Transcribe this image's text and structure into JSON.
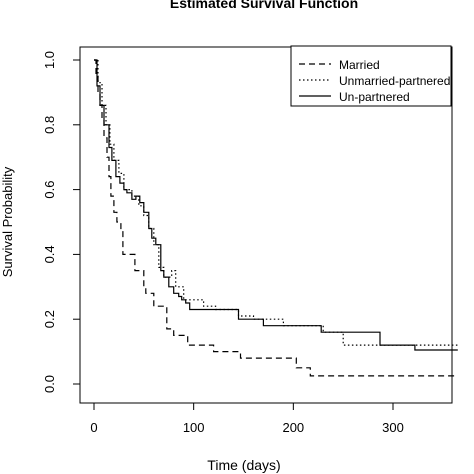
{
  "chart_data": {
    "type": "line",
    "title": "Estimated Survival Function",
    "xlabel": "Time (days)",
    "ylabel": "Survival Probability",
    "xlim": [
      -10,
      370
    ],
    "ylim": [
      0.0,
      1.0
    ],
    "x_ticks": [
      "0",
      "100",
      "200",
      "300"
    ],
    "y_ticks": [
      "0.0",
      "0.2",
      "0.4",
      "0.6",
      "0.8",
      "1.0"
    ],
    "grid": false,
    "legend_position": "top-right",
    "series": [
      {
        "name": "Married",
        "line_style": "dashed",
        "color": "#000000",
        "points": [
          [
            0,
            1.0
          ],
          [
            2,
            0.95
          ],
          [
            4,
            0.9
          ],
          [
            6,
            0.86
          ],
          [
            8,
            0.82
          ],
          [
            10,
            0.76
          ],
          [
            13,
            0.7
          ],
          [
            15,
            0.64
          ],
          [
            17,
            0.58
          ],
          [
            20,
            0.53
          ],
          [
            23,
            0.5
          ],
          [
            27,
            0.48
          ],
          [
            29,
            0.4
          ],
          [
            39,
            0.4
          ],
          [
            41,
            0.35
          ],
          [
            48,
            0.35
          ],
          [
            50,
            0.3
          ],
          [
            52,
            0.28
          ],
          [
            58,
            0.28
          ],
          [
            60,
            0.24
          ],
          [
            70,
            0.24
          ],
          [
            73,
            0.17
          ],
          [
            78,
            0.17
          ],
          [
            80,
            0.15
          ],
          [
            92,
            0.15
          ],
          [
            94,
            0.12
          ],
          [
            118,
            0.12
          ],
          [
            120,
            0.1
          ],
          [
            145,
            0.1
          ],
          [
            147,
            0.08
          ],
          [
            201,
            0.08
          ],
          [
            203,
            0.05
          ],
          [
            215,
            0.05
          ],
          [
            217,
            0.025
          ],
          [
            365,
            0.025
          ]
        ]
      },
      {
        "name": "Unmarried-partnered",
        "line_style": "dotted",
        "color": "#000000",
        "points": [
          [
            0,
            1.0
          ],
          [
            4,
            0.93
          ],
          [
            8,
            0.86
          ],
          [
            12,
            0.8
          ],
          [
            16,
            0.74
          ],
          [
            20,
            0.69
          ],
          [
            25,
            0.65
          ],
          [
            30,
            0.6
          ],
          [
            38,
            0.58
          ],
          [
            45,
            0.55
          ],
          [
            50,
            0.52
          ],
          [
            55,
            0.48
          ],
          [
            60,
            0.43
          ],
          [
            65,
            0.36
          ],
          [
            70,
            0.33
          ],
          [
            78,
            0.35
          ],
          [
            82,
            0.3
          ],
          [
            90,
            0.26
          ],
          [
            100,
            0.26
          ],
          [
            110,
            0.24
          ],
          [
            122,
            0.23
          ],
          [
            140,
            0.23
          ],
          [
            145,
            0.21
          ],
          [
            155,
            0.21
          ],
          [
            160,
            0.2
          ],
          [
            180,
            0.2
          ],
          [
            190,
            0.18
          ],
          [
            205,
            0.18
          ],
          [
            225,
            0.18
          ],
          [
            230,
            0.16
          ],
          [
            245,
            0.16
          ],
          [
            250,
            0.14
          ],
          [
            250,
            0.12
          ],
          [
            365,
            0.12
          ]
        ]
      },
      {
        "name": "Un-partnered",
        "line_style": "solid",
        "color": "#000000",
        "points": [
          [
            0,
            1.0
          ],
          [
            3,
            0.92
          ],
          [
            6,
            0.86
          ],
          [
            10,
            0.8
          ],
          [
            15,
            0.73
          ],
          [
            18,
            0.69
          ],
          [
            22,
            0.64
          ],
          [
            26,
            0.62
          ],
          [
            30,
            0.6
          ],
          [
            33,
            0.59
          ],
          [
            38,
            0.57
          ],
          [
            42,
            0.58
          ],
          [
            46,
            0.56
          ],
          [
            50,
            0.53
          ],
          [
            55,
            0.48
          ],
          [
            58,
            0.45
          ],
          [
            62,
            0.43
          ],
          [
            67,
            0.35
          ],
          [
            70,
            0.33
          ],
          [
            75,
            0.3
          ],
          [
            80,
            0.28
          ],
          [
            85,
            0.27
          ],
          [
            88,
            0.26
          ],
          [
            92,
            0.25
          ],
          [
            96,
            0.23
          ],
          [
            140,
            0.23
          ],
          [
            145,
            0.2
          ],
          [
            165,
            0.2
          ],
          [
            170,
            0.18
          ],
          [
            225,
            0.18
          ],
          [
            228,
            0.16
          ],
          [
            285,
            0.16
          ],
          [
            287,
            0.12
          ],
          [
            320,
            0.12
          ],
          [
            322,
            0.105
          ],
          [
            365,
            0.105
          ]
        ]
      }
    ]
  }
}
